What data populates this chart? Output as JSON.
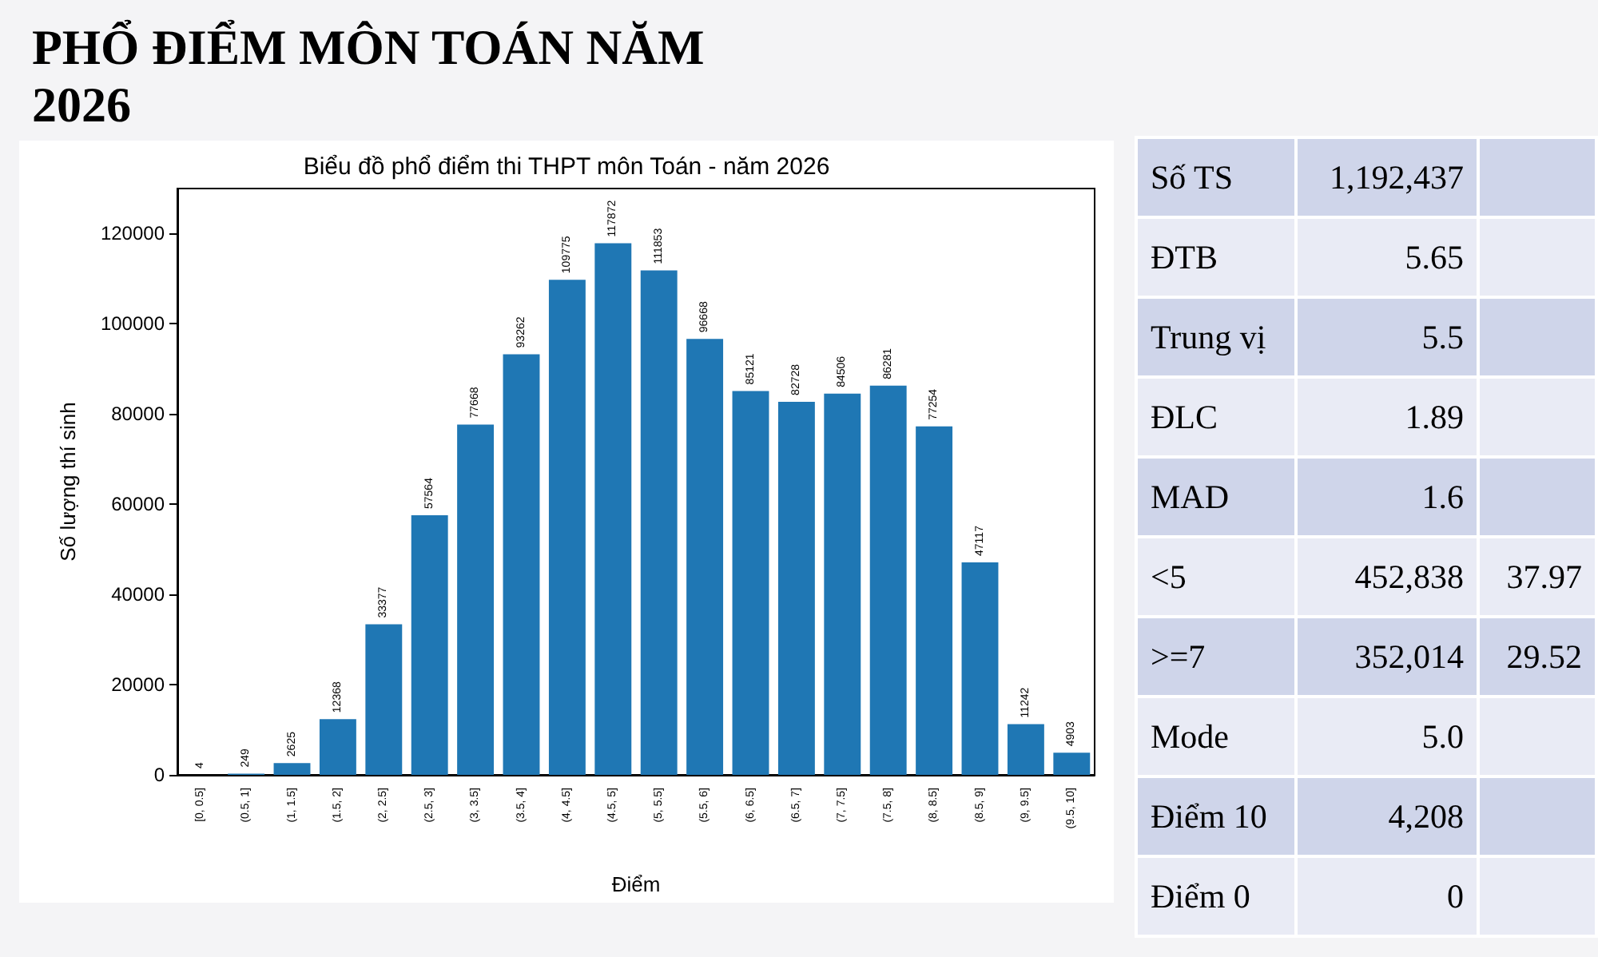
{
  "chart_data": [
    {
      "type": "bar",
      "title": "PHỔ ĐIỂM MÔN TOÁN NĂM 2026",
      "subtitle": "Biểu đồ phổ điểm thi THPT môn Toán - năm 2026",
      "xlabel": "Điểm",
      "ylabel": "Số lượng thí sinh",
      "categories": [
        "[0, 0.5]",
        "(0.5, 1]",
        "(1, 1.5]",
        "(1.5, 2]",
        "(2, 2.5]",
        "(2.5, 3]",
        "(3, 3.5]",
        "(3.5, 4]",
        "(4, 4.5]",
        "(4.5, 5]",
        "(5, 5.5]",
        "(5.5, 6]",
        "(6, 6.5]",
        "(6.5, 7]",
        "(7, 7.5]",
        "(7.5, 8]",
        "(8, 8.5]",
        "(8.5, 9]",
        "(9, 9.5]",
        "(9.5, 10]"
      ],
      "values": [
        4,
        249,
        2625,
        12368,
        33377,
        57564,
        77668,
        93262,
        109775,
        117872,
        111853,
        96668,
        85121,
        82728,
        84506,
        86281,
        77254,
        47117,
        11242,
        4903
      ],
      "color": "#1f77b4",
      "data_labels": true,
      "ylim": [
        0,
        130000
      ],
      "yticks": [
        0,
        20000,
        40000,
        60000,
        80000,
        100000,
        120000
      ],
      "grid": false
    },
    {
      "type": "other",
      "categories": [
        "Số TS",
        "ĐTB",
        "Trung vị",
        "ĐLC",
        "MAD",
        "<5",
        ">=7",
        "Mode",
        "Điểm 10",
        "Điểm 0"
      ],
      "cell_labels": [
        [
          "1,192,437",
          null
        ],
        [
          "5.65",
          null
        ],
        [
          "5.5",
          null
        ],
        [
          "1.89",
          null
        ],
        [
          "1.6",
          null
        ],
        [
          "452,838",
          "37.97"
        ],
        [
          "352,014",
          "29.52"
        ],
        [
          "5.0",
          null
        ],
        [
          "4,208",
          null
        ],
        [
          "0",
          null
        ]
      ]
    }
  ]
}
